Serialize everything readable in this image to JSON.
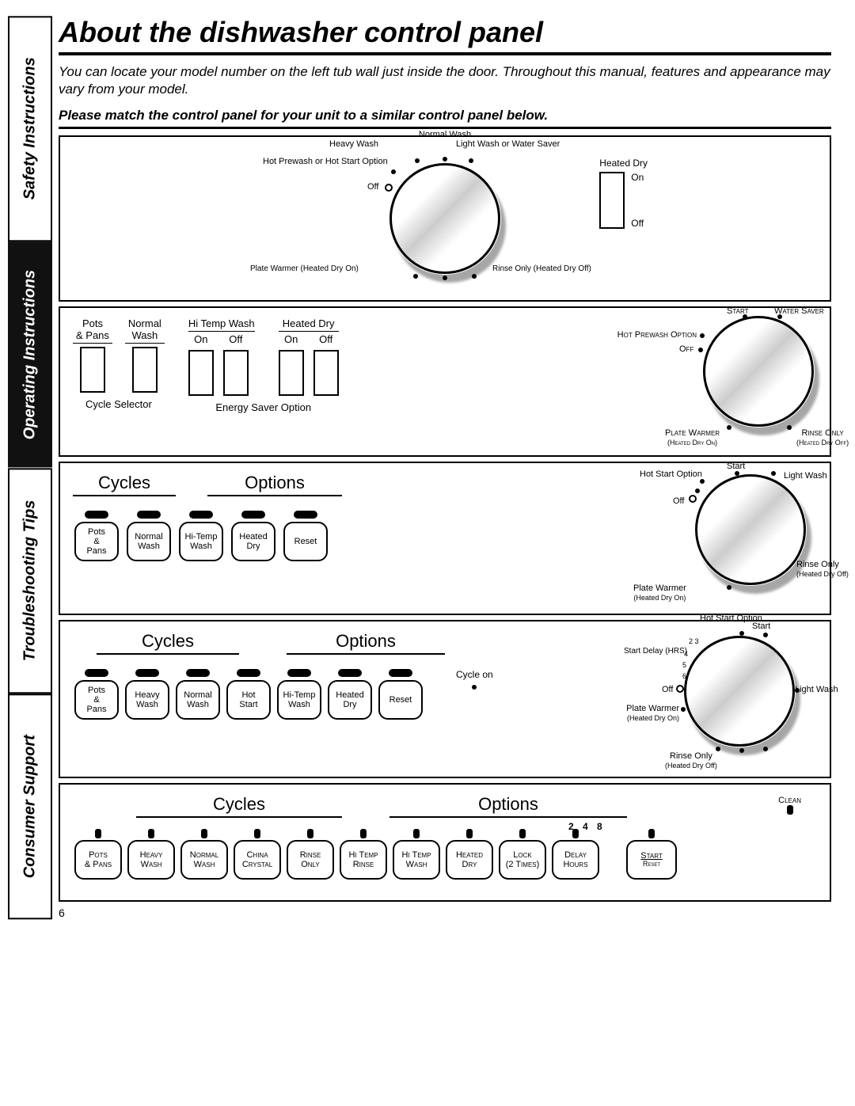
{
  "tabs": [
    "Safety Instructions",
    "Operating Instructions",
    "Troubleshooting Tips",
    "Consumer Support"
  ],
  "active_tab": 1,
  "title": "About the dishwasher control panel",
  "intro": "You can locate your model number on the left tub wall just inside the door. Throughout this manual, features and appearance may vary from your model.",
  "match": "Please match the control panel for your unit to a similar control panel below.",
  "page_number": "6",
  "panel1": {
    "dial_labels": {
      "normal_wash": "Normal Wash",
      "heavy_wash": "Heavy Wash",
      "light_wash": "Light Wash or Water Saver",
      "hot_prewash": "Hot Prewash or Hot Start Option",
      "off": "Off",
      "plate_warmer": "Plate Warmer (Heated Dry On)",
      "rinse_only": "Rinse Only (Heated Dry Off)"
    },
    "switch": {
      "title": "Heated Dry",
      "on": "On",
      "off": "Off"
    }
  },
  "panel2": {
    "left": {
      "cols": [
        {
          "top": "Pots & Pans"
        },
        {
          "top": "Normal Wash"
        }
      ],
      "cycle_selector": "Cycle Selector",
      "hi_temp": {
        "title": "Hi Temp Wash",
        "on": "On",
        "off": "Off"
      },
      "heated_dry": {
        "title": "Heated Dry",
        "on": "On",
        "off": "Off"
      },
      "energy_saver": "Energy Saver Option"
    },
    "dial": {
      "start": "Start",
      "water_saver": "Water Saver",
      "hot_prewash": "Hot Prewash Option",
      "off": "Off",
      "plate_warmer": "Plate Warmer",
      "plate_warmer_sub": "(Heated Dry On)",
      "rinse_only": "Rinse Only",
      "rinse_only_sub": "(Heated Dry Off)"
    }
  },
  "panel3": {
    "cycles": "Cycles",
    "options": "Options",
    "buttons": [
      "Pots & Pans",
      "Normal Wash",
      "Hi-Temp Wash",
      "Heated Dry",
      "Reset"
    ],
    "dial": {
      "start": "Start",
      "hot_start": "Hot Start Option",
      "light_wash": "Light Wash",
      "off": "Off",
      "rinse_only": "Rinse Only",
      "rinse_only_sub": "(Heated Dry Off)",
      "plate_warmer": "Plate Warmer",
      "plate_warmer_sub": "(Heated Dry On)"
    }
  },
  "panel4": {
    "cycles": "Cycles",
    "options": "Options",
    "cycle_on": "Cycle on",
    "buttons": [
      "Pots & Pans",
      "Heavy Wash",
      "Normal Wash",
      "Hot Start",
      "Hi-Temp Wash",
      "Heated Dry",
      "Reset"
    ],
    "dial": {
      "hot_start": "Hot Start Option",
      "start": "Start",
      "start_delay": "Start Delay (HRS)",
      "delay_nums": [
        "2",
        "3",
        "4",
        "5",
        "6"
      ],
      "off": "Off",
      "light_wash": "Light Wash",
      "plate_warmer": "Plate Warmer",
      "plate_warmer_sub": "(Heated Dry On)",
      "rinse_only": "Rinse Only",
      "rinse_only_sub": "(Heated Dry Off)"
    }
  },
  "panel5": {
    "cycles": "Cycles",
    "options": "Options",
    "clean": "Clean",
    "buttons": [
      [
        "Pots",
        "& Pans"
      ],
      [
        "Heavy",
        "Wash"
      ],
      [
        "Normal",
        "Wash"
      ],
      [
        "China",
        "Crystal"
      ],
      [
        "Rinse",
        "Only"
      ],
      [
        "Hi Temp",
        "Rinse"
      ],
      [
        "Hi Temp",
        "Wash"
      ],
      [
        "Heated",
        "Dry"
      ],
      [
        "Lock",
        "(2 Times)"
      ],
      [
        "Delay",
        "Hours"
      ]
    ],
    "delay_nums": "2  4  8",
    "start": [
      "Start",
      "Reset"
    ]
  }
}
